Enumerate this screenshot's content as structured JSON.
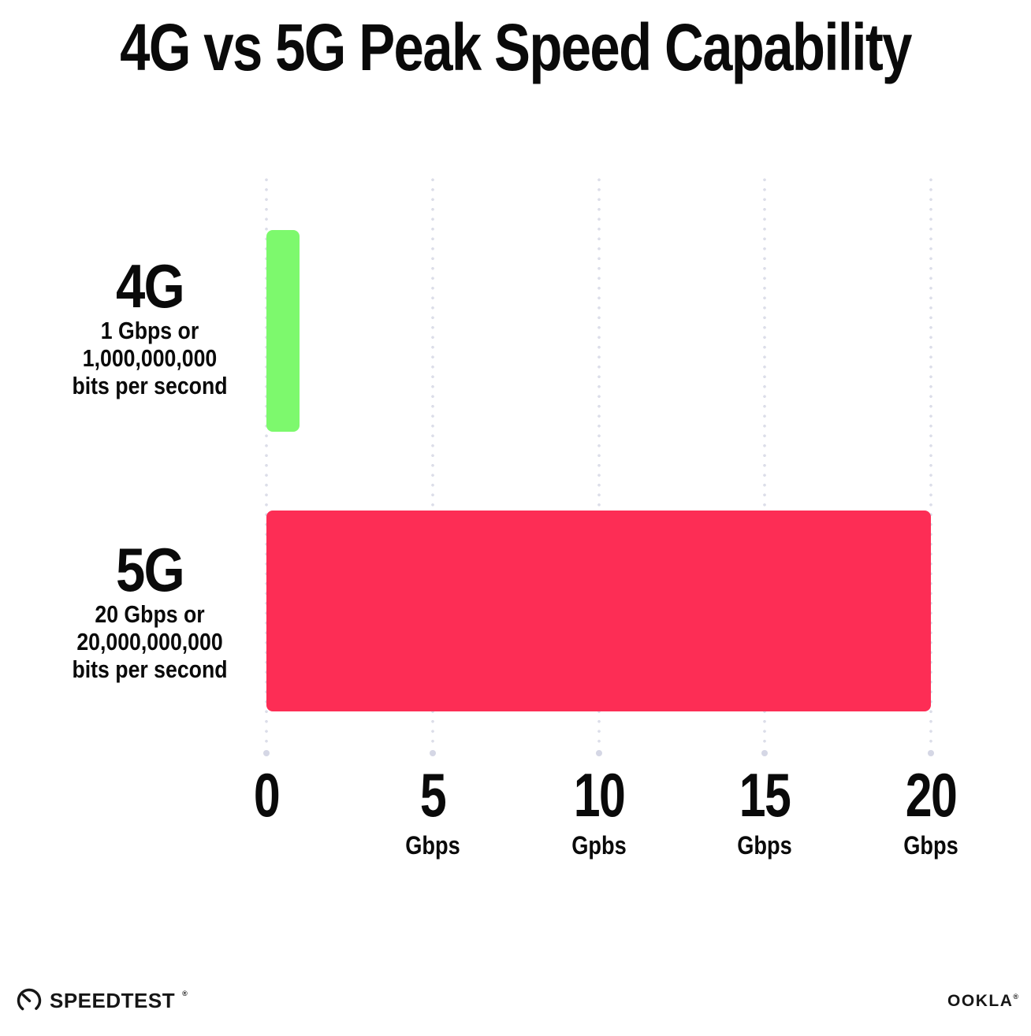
{
  "title": "4G vs 5G Peak Speed Capability",
  "chart_data": {
    "type": "bar",
    "orientation": "horizontal",
    "title": "4G vs 5G Peak Speed Capability",
    "categories": [
      "4G",
      "5G"
    ],
    "values": [
      1,
      20
    ],
    "series": [
      {
        "name": "4G",
        "value": 1,
        "color": "#7df96d",
        "sublabel": [
          "1 Gbps or",
          "1,000,000,000",
          "bits per second"
        ]
      },
      {
        "name": "5G",
        "value": 20,
        "color": "#fd2d55",
        "sublabel": [
          "20 Gbps or",
          "20,000,000,000",
          "bits per second"
        ]
      }
    ],
    "xlim": [
      0,
      20
    ],
    "x_ticks": [
      {
        "value": 0,
        "label": "0",
        "unit": ""
      },
      {
        "value": 5,
        "label": "5",
        "unit": "Gbps"
      },
      {
        "value": 10,
        "label": "10",
        "unit": "Gpbs"
      },
      {
        "value": 15,
        "label": "15",
        "unit": "Gbps"
      },
      {
        "value": 20,
        "label": "20",
        "unit": "Gbps"
      }
    ],
    "grid": "vertical-dotted",
    "legend": "none",
    "xlabel": "",
    "ylabel": ""
  },
  "footer": {
    "speedtest": {
      "label": "SPEEDTEST",
      "trademark": "®"
    },
    "ookla": {
      "label": "OOKLA",
      "trademark": "®"
    }
  },
  "colors": {
    "background": "#ffffff",
    "text": "#0a0a0a",
    "grid_dot": "#dcdee9",
    "bar_4g": "#7df96d",
    "bar_5g": "#fd2d55"
  }
}
